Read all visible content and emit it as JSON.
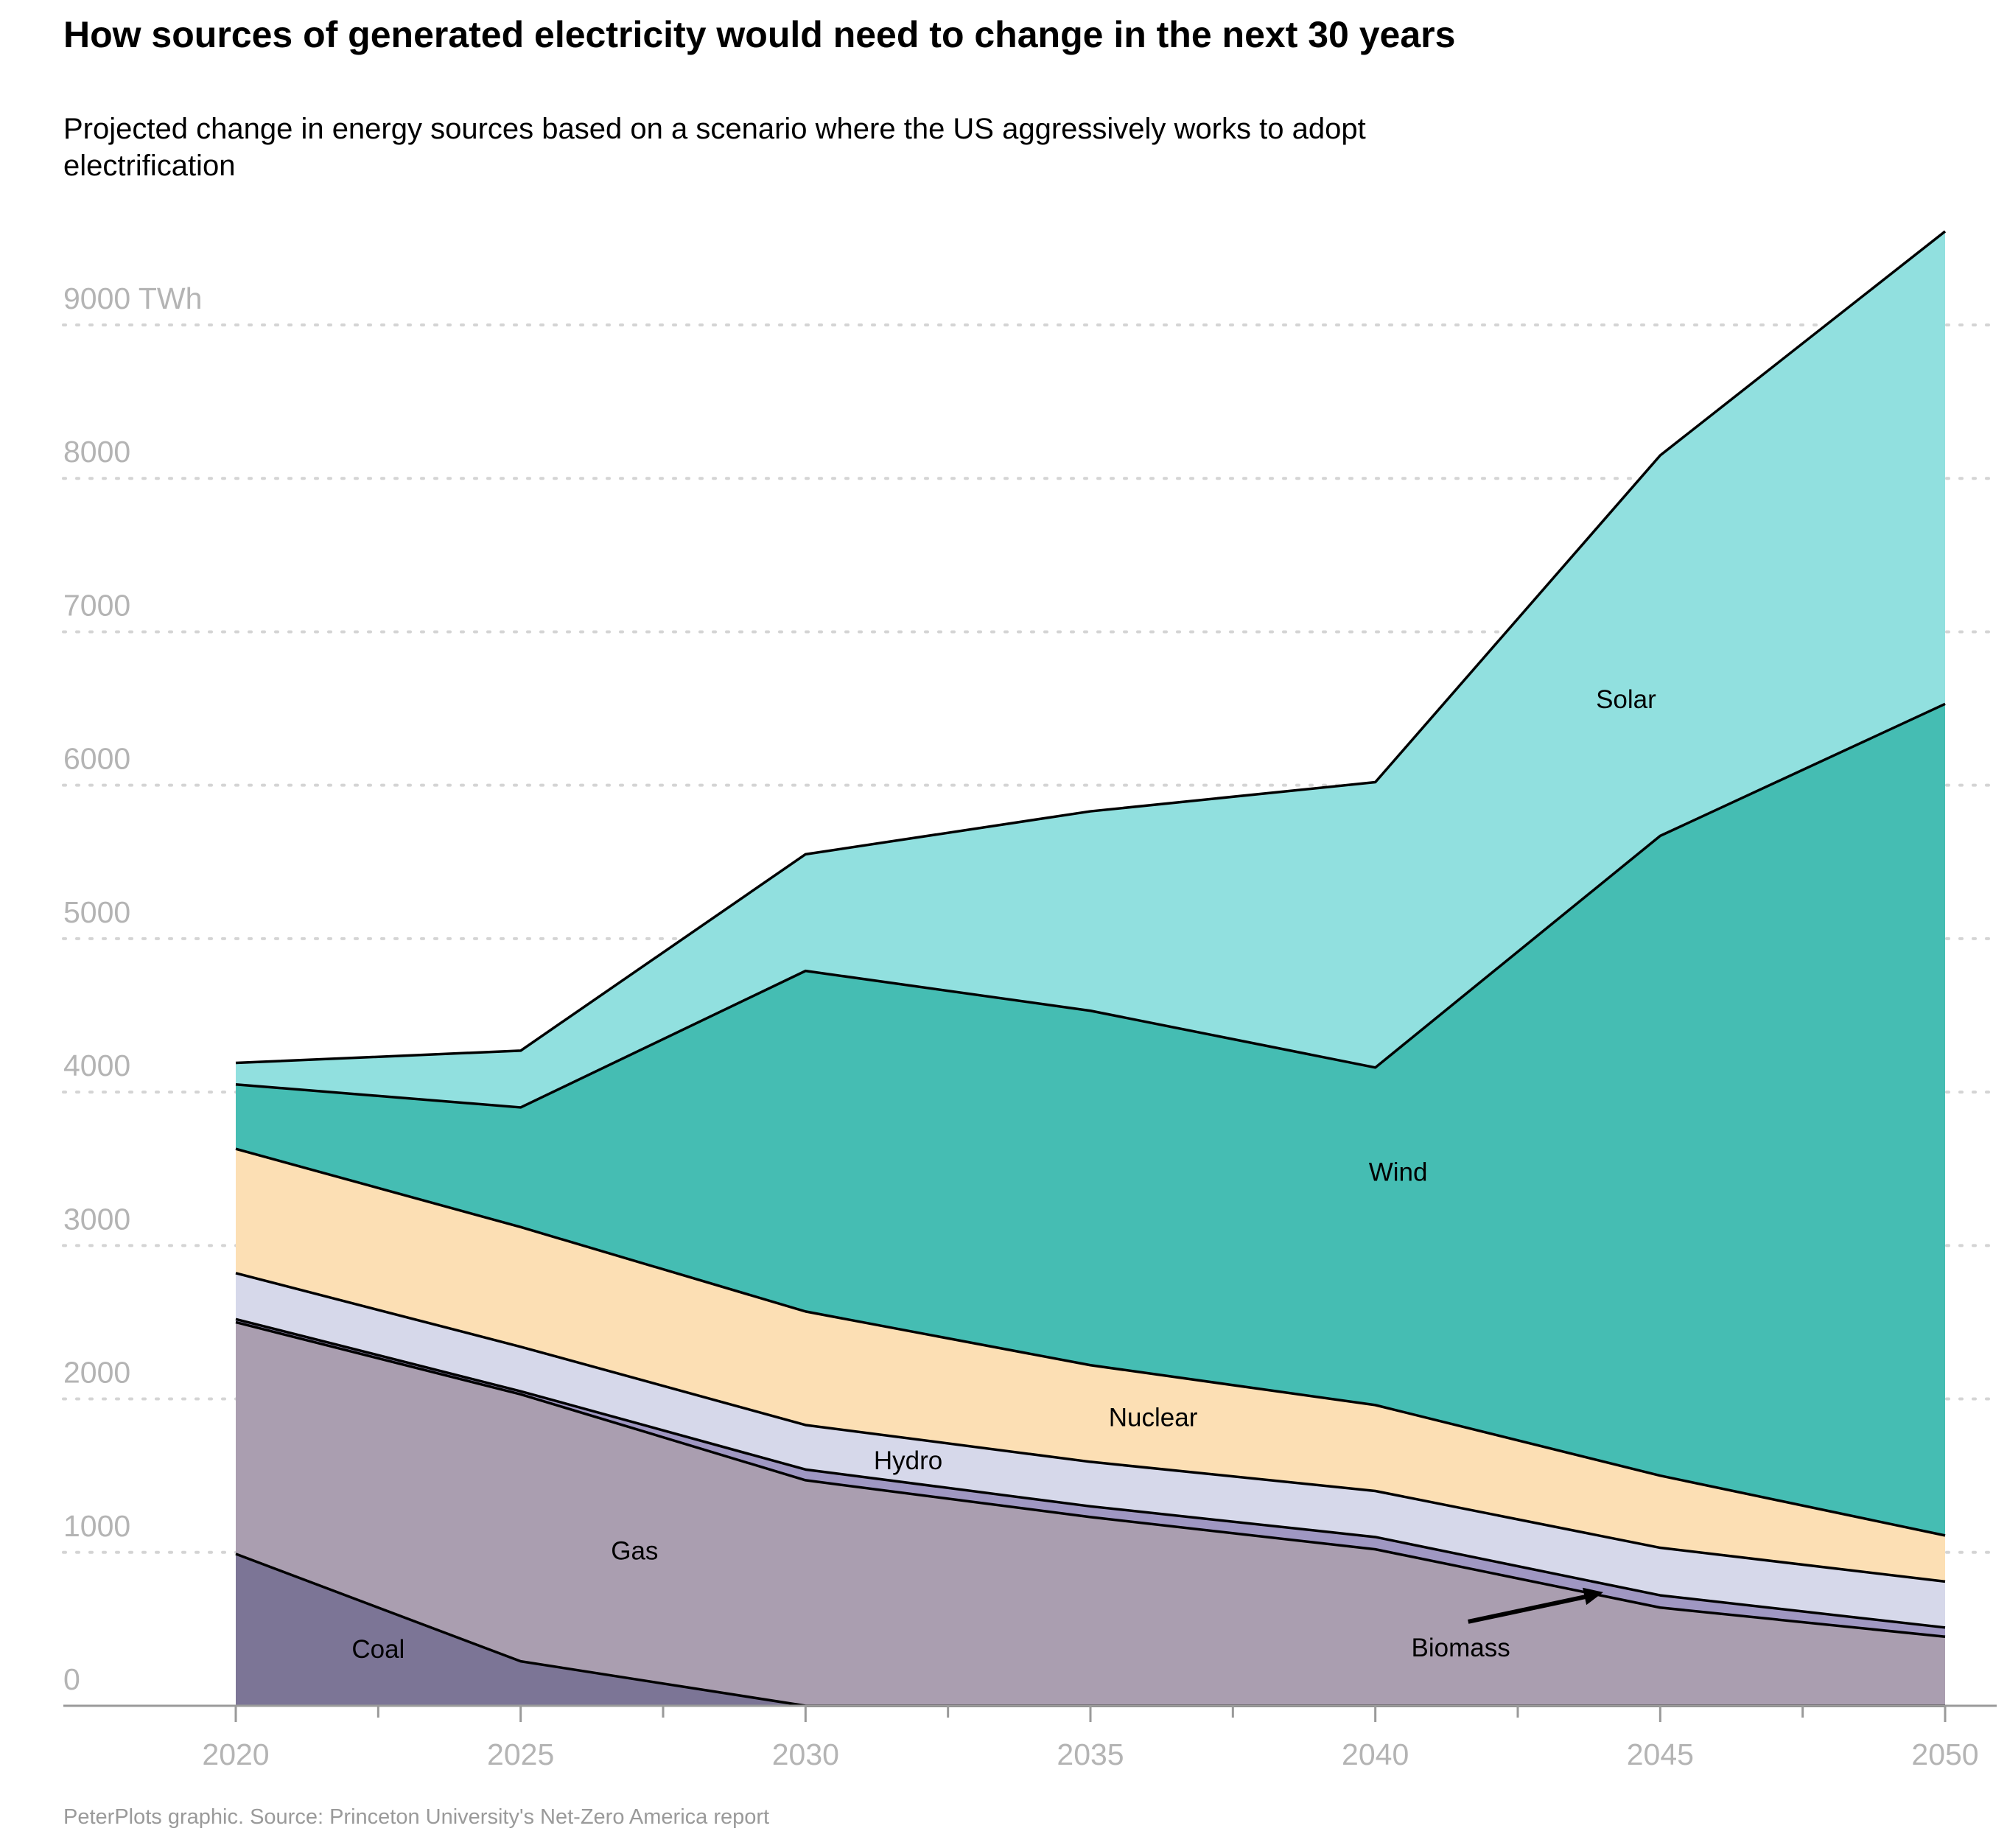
{
  "title": "How sources of generated electricity would need to change in the next 30 years",
  "subtitle": "Projected change in energy sources based on a scenario where the US aggressively works to adopt electrification",
  "source": "PeterPlots graphic. Source: Princeton University's Net-Zero America report",
  "chart_data": {
    "type": "area",
    "stacked": true,
    "x": [
      2020,
      2025,
      2030,
      2035,
      2040,
      2045,
      2050
    ],
    "xlim": [
      2017,
      2051
    ],
    "ylim": [
      0,
      10000
    ],
    "y_unit": "TWh",
    "grid": "horizontal dotted",
    "yticks": [
      {
        "value": 0,
        "label": "0"
      },
      {
        "value": 1000,
        "label": "1000"
      },
      {
        "value": 2000,
        "label": "2000"
      },
      {
        "value": 3000,
        "label": "3000"
      },
      {
        "value": 4000,
        "label": "4000"
      },
      {
        "value": 5000,
        "label": "5000"
      },
      {
        "value": 6000,
        "label": "6000"
      },
      {
        "value": 7000,
        "label": "7000"
      },
      {
        "value": 8000,
        "label": "8000"
      },
      {
        "value": 9000,
        "label": "9000 TWh"
      }
    ],
    "xticks": [
      {
        "value": 2020,
        "label": "2020"
      },
      {
        "value": 2025,
        "label": "2025"
      },
      {
        "value": 2030,
        "label": "2030"
      },
      {
        "value": 2035,
        "label": "2035"
      },
      {
        "value": 2040,
        "label": "2040"
      },
      {
        "value": 2045,
        "label": "2045"
      },
      {
        "value": 2050,
        "label": "2050"
      }
    ],
    "minor_xticks": [
      2022.5,
      2027.5,
      2032.5,
      2037.5,
      2042.5,
      2047.5
    ],
    "series": [
      {
        "name": "Coal",
        "color": "#7c7596",
        "values": [
          990,
          290,
          0,
          0,
          0,
          0,
          0
        ],
        "label_at": [
          2022.5,
          370
        ]
      },
      {
        "name": "Gas",
        "color": "#aa9eb0",
        "values": [
          1510,
          1740,
          1470,
          1230,
          1020,
          640,
          450
        ],
        "label_at": [
          2027,
          1010
        ]
      },
      {
        "name": "Biomass",
        "color": "#9f97c2",
        "values": [
          20,
          20,
          70,
          70,
          80,
          80,
          60
        ],
        "label_at": [
          2041.5,
          380
        ],
        "arrow_to": [
          2044,
          740
        ]
      },
      {
        "name": "Hydro",
        "color": "#d6d8ea",
        "values": [
          300,
          290,
          290,
          290,
          300,
          310,
          300
        ]
      },
      {
        "name": "Nuclear",
        "color": "#fcdfb4",
        "values": [
          810,
          780,
          740,
          630,
          560,
          470,
          300
        ]
      },
      {
        "name": "Wind",
        "color": "#45bdb3",
        "values": [
          420,
          780,
          2220,
          2310,
          2200,
          4170,
          5420
        ]
      },
      {
        "name": "Solar",
        "color": "#91e0df",
        "values": [
          140,
          370,
          760,
          1300,
          1860,
          2480,
          3080
        ]
      }
    ],
    "annotations": [
      {
        "text": "Hydro",
        "x": 2031.8,
        "y": 1600
      },
      {
        "text": "Nuclear",
        "x": 2036.1,
        "y": 1880
      },
      {
        "text": "Wind",
        "x": 2040.4,
        "y": 3480
      },
      {
        "text": "Solar",
        "x": 2044.4,
        "y": 6560
      }
    ]
  }
}
